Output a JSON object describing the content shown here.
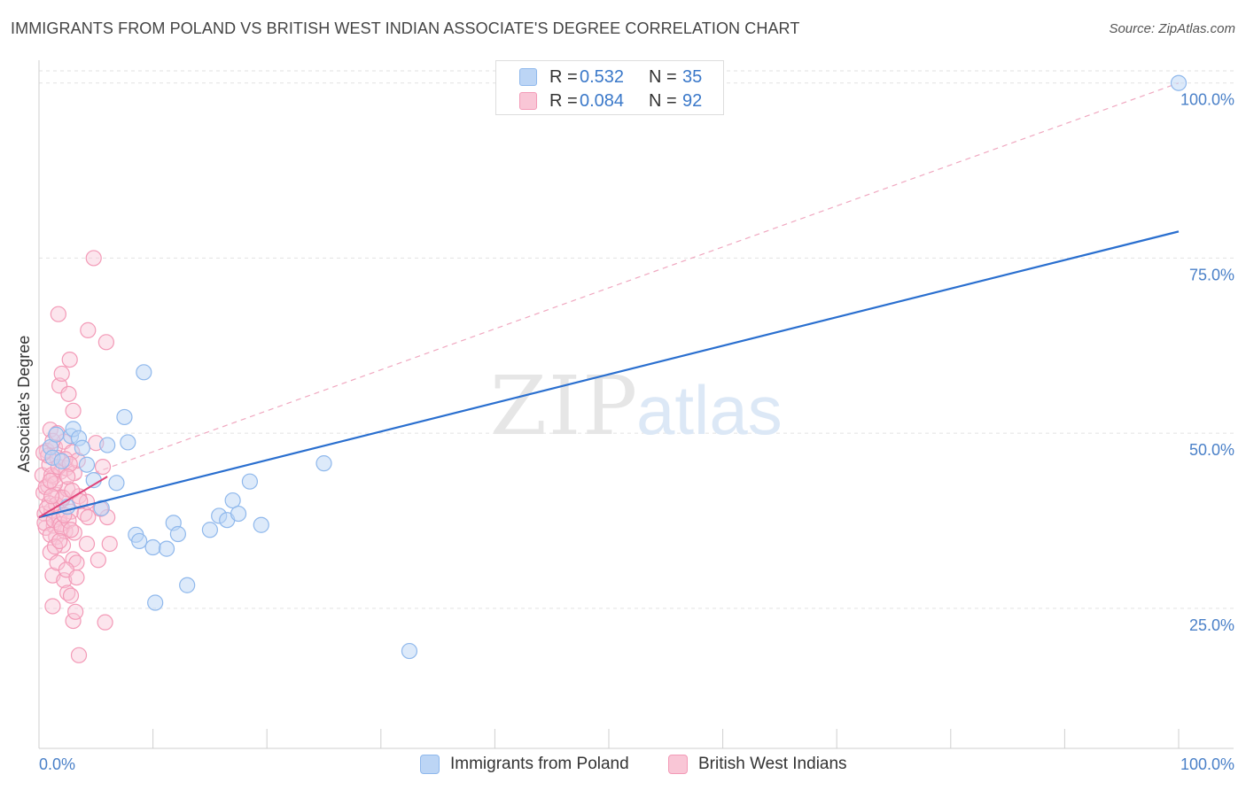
{
  "title": "IMMIGRANTS FROM POLAND VS BRITISH WEST INDIAN ASSOCIATE'S DEGREE CORRELATION CHART",
  "source": "Source: ZipAtlas.com",
  "watermark": {
    "zip": "ZIP",
    "atlas": "atlas"
  },
  "legend": {
    "r_label": "R =",
    "n_label": "N =",
    "series": [
      {
        "name": "Immigrants from Poland",
        "r": "0.532",
        "n": "35",
        "color": "#8fb8ec",
        "fill": "#bcd5f5",
        "line": "#2a6fcf"
      },
      {
        "name": "British West Indians",
        "r": "0.084",
        "n": "92",
        "color": "#f39ab7",
        "fill": "#f9c6d6",
        "line": "#e0457a"
      }
    ]
  },
  "chart_data": {
    "type": "scatter",
    "title": "IMMIGRANTS FROM POLAND VS BRITISH WEST INDIAN ASSOCIATE'S DEGREE CORRELATION CHART",
    "xlabel": "",
    "ylabel": "Associate's Degree",
    "xlim": [
      0,
      100
    ],
    "ylim": [
      5,
      103
    ],
    "x_tick_labels": [
      "0.0%",
      "100.0%"
    ],
    "y_ticks": [
      25,
      50,
      75,
      100
    ],
    "y_tick_labels": [
      "25.0%",
      "50.0%",
      "75.0%",
      "100.0%"
    ],
    "grid": true,
    "series": [
      {
        "name": "Immigrants from Poland",
        "points": [
          [
            1.0,
            48.0
          ],
          [
            1.2,
            46.5
          ],
          [
            1.5,
            49.8
          ],
          [
            2.0,
            46.0
          ],
          [
            2.8,
            49.6
          ],
          [
            3.0,
            50.6
          ],
          [
            3.5,
            49.3
          ],
          [
            3.8,
            47.9
          ],
          [
            4.2,
            45.5
          ],
          [
            4.8,
            43.3
          ],
          [
            5.5,
            39.3
          ],
          [
            6.0,
            48.3
          ],
          [
            6.8,
            42.9
          ],
          [
            7.5,
            52.3
          ],
          [
            7.8,
            48.7
          ],
          [
            8.5,
            35.5
          ],
          [
            8.8,
            34.6
          ],
          [
            9.2,
            58.7
          ],
          [
            10.0,
            33.7
          ],
          [
            10.2,
            25.8
          ],
          [
            11.2,
            33.5
          ],
          [
            11.8,
            37.2
          ],
          [
            12.2,
            35.6
          ],
          [
            13.0,
            28.3
          ],
          [
            15.0,
            36.2
          ],
          [
            15.8,
            38.2
          ],
          [
            16.5,
            37.6
          ],
          [
            17.0,
            40.4
          ],
          [
            17.5,
            38.5
          ],
          [
            18.5,
            43.1
          ],
          [
            19.5,
            36.9
          ],
          [
            25.0,
            45.7
          ],
          [
            32.5,
            18.9
          ],
          [
            100.0,
            100.0
          ],
          [
            2.5,
            39.5
          ]
        ],
        "trend": {
          "x0": 0,
          "y0": 38.0,
          "x1": 100,
          "y1": 78.8
        }
      },
      {
        "name": "British West Indians",
        "points": [
          [
            0.3,
            44.0
          ],
          [
            0.4,
            41.5
          ],
          [
            0.5,
            38.5
          ],
          [
            0.6,
            36.5
          ],
          [
            0.7,
            47.5
          ],
          [
            0.8,
            42.5
          ],
          [
            0.9,
            45.5
          ],
          [
            1.0,
            50.5
          ],
          [
            1.0,
            33.0
          ],
          [
            1.1,
            39.0
          ],
          [
            1.2,
            25.3
          ],
          [
            1.2,
            29.7
          ],
          [
            1.3,
            43.8
          ],
          [
            1.3,
            36.8
          ],
          [
            1.4,
            48.0
          ],
          [
            1.5,
            41.2
          ],
          [
            1.5,
            35.2
          ],
          [
            1.6,
            46.5
          ],
          [
            1.6,
            31.5
          ],
          [
            1.7,
            67.0
          ],
          [
            1.8,
            56.8
          ],
          [
            1.8,
            38.0
          ],
          [
            1.9,
            44.5
          ],
          [
            2.0,
            58.5
          ],
          [
            2.0,
            40.5
          ],
          [
            2.1,
            34.0
          ],
          [
            2.2,
            48.8
          ],
          [
            2.2,
            29.0
          ],
          [
            2.3,
            36.0
          ],
          [
            2.4,
            45.0
          ],
          [
            2.5,
            42.0
          ],
          [
            2.5,
            27.2
          ],
          [
            2.6,
            55.6
          ],
          [
            2.7,
            60.5
          ],
          [
            2.8,
            38.8
          ],
          [
            2.8,
            26.8
          ],
          [
            2.9,
            47.3
          ],
          [
            3.0,
            53.2
          ],
          [
            3.0,
            32.0
          ],
          [
            3.0,
            23.2
          ],
          [
            3.1,
            44.3
          ],
          [
            3.2,
            24.5
          ],
          [
            3.3,
            31.5
          ],
          [
            3.4,
            46.1
          ],
          [
            3.5,
            18.3
          ],
          [
            4.0,
            38.5
          ],
          [
            3.5,
            41.0
          ],
          [
            4.2,
            40.2
          ],
          [
            4.2,
            34.2
          ],
          [
            4.3,
            38.0
          ],
          [
            4.8,
            75.0
          ],
          [
            5.0,
            48.6
          ],
          [
            5.2,
            31.9
          ],
          [
            5.6,
            45.2
          ],
          [
            5.8,
            23.0
          ],
          [
            5.9,
            63.0
          ],
          [
            6.0,
            38.0
          ],
          [
            6.2,
            34.2
          ],
          [
            4.3,
            64.7
          ],
          [
            0.5,
            37.2
          ],
          [
            0.6,
            42.3
          ],
          [
            0.8,
            46.8
          ],
          [
            0.9,
            40.0
          ],
          [
            1.0,
            35.5
          ],
          [
            1.1,
            44.0
          ],
          [
            1.2,
            48.9
          ],
          [
            1.3,
            37.6
          ],
          [
            1.4,
            42.8
          ],
          [
            1.5,
            39.8
          ],
          [
            1.7,
            45.2
          ],
          [
            1.9,
            37.0
          ],
          [
            2.0,
            36.5
          ],
          [
            2.1,
            40.8
          ],
          [
            2.3,
            46.3
          ],
          [
            2.4,
            30.5
          ],
          [
            2.6,
            37.5
          ],
          [
            2.7,
            45.6
          ],
          [
            2.9,
            41.8
          ],
          [
            3.1,
            35.8
          ],
          [
            3.3,
            29.4
          ],
          [
            0.4,
            47.2
          ],
          [
            0.7,
            39.3
          ],
          [
            1.0,
            43.2
          ],
          [
            1.4,
            33.8
          ],
          [
            1.8,
            34.6
          ],
          [
            2.2,
            38.3
          ],
          [
            2.5,
            43.8
          ],
          [
            2.8,
            36.2
          ],
          [
            3.6,
            40.3
          ],
          [
            5.4,
            39.2
          ],
          [
            1.6,
            50.0
          ],
          [
            1.1,
            41.0
          ]
        ],
        "trend": {
          "x0": 0,
          "y0": 38.0,
          "x1": 6,
          "y1": 43.8
        },
        "diagonal": {
          "x0": 0,
          "y0": 41.5,
          "x1": 100,
          "y1": 100
        }
      }
    ]
  }
}
